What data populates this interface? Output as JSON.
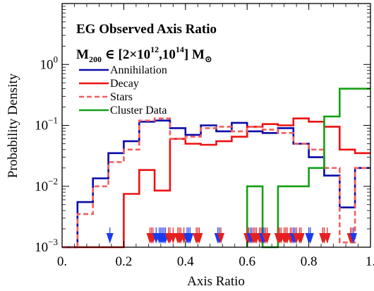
{
  "chart_data": {
    "type": "line",
    "title": "EG Observed Axis Ratio",
    "subtitle": {
      "prefix": "M",
      "prefix_sub": "200",
      "middle": " ∈ [2×10",
      "exp1": "12",
      "mid2": ",10",
      "exp2": "14",
      "suffix": "] M",
      "suffix_sub": "⊙"
    },
    "xlabel": "Axis Ratio",
    "ylabel": "Probability Density",
    "xlim": [
      0.0,
      1.0
    ],
    "ylim": [
      0.001,
      10
    ],
    "y_scale": "log",
    "grid": false,
    "legend_position": "upper-left",
    "x_ticks": [
      {
        "value": 0.0,
        "label": "0."
      },
      {
        "value": 0.2,
        "label": "0.2"
      },
      {
        "value": 0.4,
        "label": "0.4"
      },
      {
        "value": 0.6,
        "label": "0.6"
      },
      {
        "value": 0.8,
        "label": "0.8"
      },
      {
        "value": 1.0,
        "label": "1."
      }
    ],
    "y_ticks": [
      {
        "value": 0.001,
        "base": "10",
        "exp": "−3"
      },
      {
        "value": 0.01,
        "base": "10",
        "exp": "−2"
      },
      {
        "value": 0.1,
        "base": "10",
        "exp": "−1"
      },
      {
        "value": 1,
        "base": "10",
        "exp": "0"
      }
    ],
    "bin_edges": [
      0.0,
      0.05,
      0.1,
      0.15,
      0.2,
      0.25,
      0.3,
      0.35,
      0.4,
      0.45,
      0.5,
      0.55,
      0.6,
      0.65,
      0.7,
      0.75,
      0.8,
      0.85,
      0.9,
      0.95,
      1.0
    ],
    "series": [
      {
        "name": "Annihilation",
        "color": "#0a0aa8",
        "dash": "solid",
        "values": [
          0.001,
          0.0055,
          0.0135,
          0.035,
          0.055,
          0.115,
          0.12,
          0.09,
          0.07,
          0.1,
          0.08,
          0.11,
          0.08,
          0.075,
          0.09,
          0.05,
          0.03,
          0.015,
          0.0045,
          0.02
        ]
      },
      {
        "name": "Decay",
        "color": "#ee1111",
        "dash": "solid",
        "values": [
          0.001,
          0.001,
          0.001,
          0.001,
          0.0075,
          0.0185,
          0.0085,
          0.06,
          0.05,
          0.048,
          0.055,
          0.065,
          0.095,
          0.105,
          0.1,
          0.13,
          0.115,
          0.095,
          0.04,
          0.035
        ]
      },
      {
        "name": "Stars",
        "color": "#f06060",
        "dash": "dashed",
        "values": [
          0.001,
          0.0035,
          0.01,
          0.025,
          0.04,
          0.12,
          0.13,
          0.06,
          0.065,
          0.09,
          0.095,
          0.08,
          0.095,
          0.085,
          0.075,
          0.05,
          0.04,
          0.02,
          0.0012,
          0.02
        ]
      },
      {
        "name": "Cluster Data",
        "color": "#14a014",
        "dash": "solid",
        "values": [
          0,
          0,
          0,
          0,
          0,
          0,
          0,
          0,
          0,
          0,
          0,
          0,
          0.01,
          0.001,
          0.01,
          0.01,
          0.02,
          0.14,
          0.4,
          0.4
        ]
      }
    ],
    "markers": [
      {
        "x": 0.155,
        "color": "#1a3cf0"
      },
      {
        "x": 0.285,
        "color": "#e52020"
      },
      {
        "x": 0.29,
        "color": "#e52020"
      },
      {
        "x": 0.295,
        "color": "#e52020"
      },
      {
        "x": 0.305,
        "color": "#1a3cf0"
      },
      {
        "x": 0.315,
        "color": "#1a3cf0"
      },
      {
        "x": 0.32,
        "color": "#1a3cf0"
      },
      {
        "x": 0.325,
        "color": "#1a3cf0"
      },
      {
        "x": 0.33,
        "color": "#1a3cf0"
      },
      {
        "x": 0.335,
        "color": "#1a3cf0"
      },
      {
        "x": 0.345,
        "color": "#e52020"
      },
      {
        "x": 0.35,
        "color": "#e52020"
      },
      {
        "x": 0.36,
        "color": "#e52020"
      },
      {
        "x": 0.375,
        "color": "#e52020"
      },
      {
        "x": 0.38,
        "color": "#e52020"
      },
      {
        "x": 0.385,
        "color": "#e52020"
      },
      {
        "x": 0.395,
        "color": "#e52020"
      },
      {
        "x": 0.405,
        "color": "#1a3cf0"
      },
      {
        "x": 0.41,
        "color": "#1a3cf0"
      },
      {
        "x": 0.415,
        "color": "#1a3cf0"
      },
      {
        "x": 0.435,
        "color": "#e52020"
      },
      {
        "x": 0.44,
        "color": "#e52020"
      },
      {
        "x": 0.445,
        "color": "#e52020"
      },
      {
        "x": 0.505,
        "color": "#1a3cf0"
      },
      {
        "x": 0.51,
        "color": "#1a3cf0"
      },
      {
        "x": 0.515,
        "color": "#e52020"
      },
      {
        "x": 0.6,
        "color": "#e52020"
      },
      {
        "x": 0.605,
        "color": "#e52020"
      },
      {
        "x": 0.61,
        "color": "#1a3cf0"
      },
      {
        "x": 0.615,
        "color": "#1a3cf0"
      },
      {
        "x": 0.62,
        "color": "#e52020"
      },
      {
        "x": 0.625,
        "color": "#e52020"
      },
      {
        "x": 0.63,
        "color": "#e52020"
      },
      {
        "x": 0.64,
        "color": "#e52020"
      },
      {
        "x": 0.645,
        "color": "#e52020"
      },
      {
        "x": 0.65,
        "color": "#1a3cf0"
      },
      {
        "x": 0.655,
        "color": "#1a3cf0"
      },
      {
        "x": 0.66,
        "color": "#e52020"
      },
      {
        "x": 0.665,
        "color": "#e52020"
      },
      {
        "x": 0.7,
        "color": "#e52020"
      },
      {
        "x": 0.705,
        "color": "#e52020"
      },
      {
        "x": 0.71,
        "color": "#e52020"
      },
      {
        "x": 0.72,
        "color": "#e52020"
      },
      {
        "x": 0.725,
        "color": "#e52020"
      },
      {
        "x": 0.73,
        "color": "#e52020"
      },
      {
        "x": 0.74,
        "color": "#e52020"
      },
      {
        "x": 0.745,
        "color": "#e52020"
      },
      {
        "x": 0.75,
        "color": "#1a3cf0"
      },
      {
        "x": 0.755,
        "color": "#1a3cf0"
      },
      {
        "x": 0.76,
        "color": "#e52020"
      },
      {
        "x": 0.77,
        "color": "#e52020"
      },
      {
        "x": 0.775,
        "color": "#e52020"
      },
      {
        "x": 0.8,
        "color": "#1a3cf0"
      },
      {
        "x": 0.805,
        "color": "#1a3cf0"
      },
      {
        "x": 0.845,
        "color": "#e52020"
      },
      {
        "x": 0.85,
        "color": "#e52020"
      },
      {
        "x": 0.86,
        "color": "#e52020"
      },
      {
        "x": 0.935,
        "color": "#e52020"
      },
      {
        "x": 0.94,
        "color": "#e52020"
      },
      {
        "x": 0.945,
        "color": "#1a3cf0"
      }
    ]
  }
}
